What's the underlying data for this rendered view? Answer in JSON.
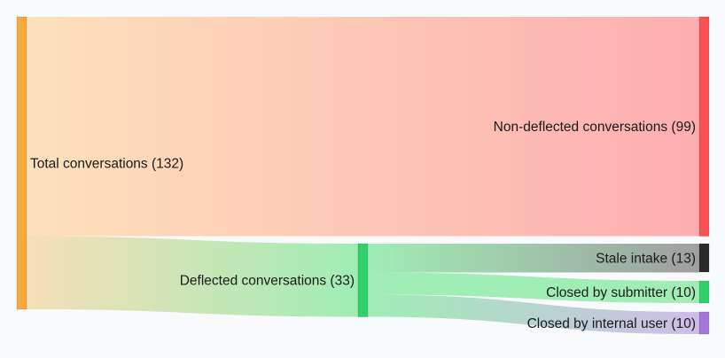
{
  "chart_data": {
    "type": "sankey",
    "nodes": [
      {
        "id": "total",
        "label": "Total conversations (132)",
        "value": 132,
        "color": "#f7a93b"
      },
      {
        "id": "non_deflected",
        "label": "Non-deflected conversations (99)",
        "value": 99,
        "color": "#fa5252"
      },
      {
        "id": "deflected",
        "label": "Deflected conversations (33)",
        "value": 33,
        "color": "#2fd16b"
      },
      {
        "id": "stale",
        "label": "Stale intake (13)",
        "value": 13,
        "color": "#2b2b2b"
      },
      {
        "id": "closed_submitter",
        "label": "Closed by submitter (10)",
        "value": 10,
        "color": "#2fd16b"
      },
      {
        "id": "closed_internal",
        "label": "Closed by internal user (10)",
        "value": 10,
        "color": "#a277d6"
      }
    ],
    "links": [
      {
        "source": "total",
        "target": "non_deflected",
        "value": 99,
        "color_from": "#fde0b8",
        "color_to": "#fda9ad"
      },
      {
        "source": "total",
        "target": "deflected",
        "value": 33,
        "color_from": "#f6ddb4",
        "color_to": "#9becb2"
      },
      {
        "source": "deflected",
        "target": "stale",
        "value": 13,
        "color_from": "#9becb2",
        "color_to": "#9a9a9a"
      },
      {
        "source": "deflected",
        "target": "closed_submitter",
        "value": 10,
        "color_from": "#9becb2",
        "color_to": "#9becb2"
      },
      {
        "source": "deflected",
        "target": "closed_internal",
        "value": 10,
        "color_from": "#9becb2",
        "color_to": "#cdb9e8"
      }
    ]
  }
}
